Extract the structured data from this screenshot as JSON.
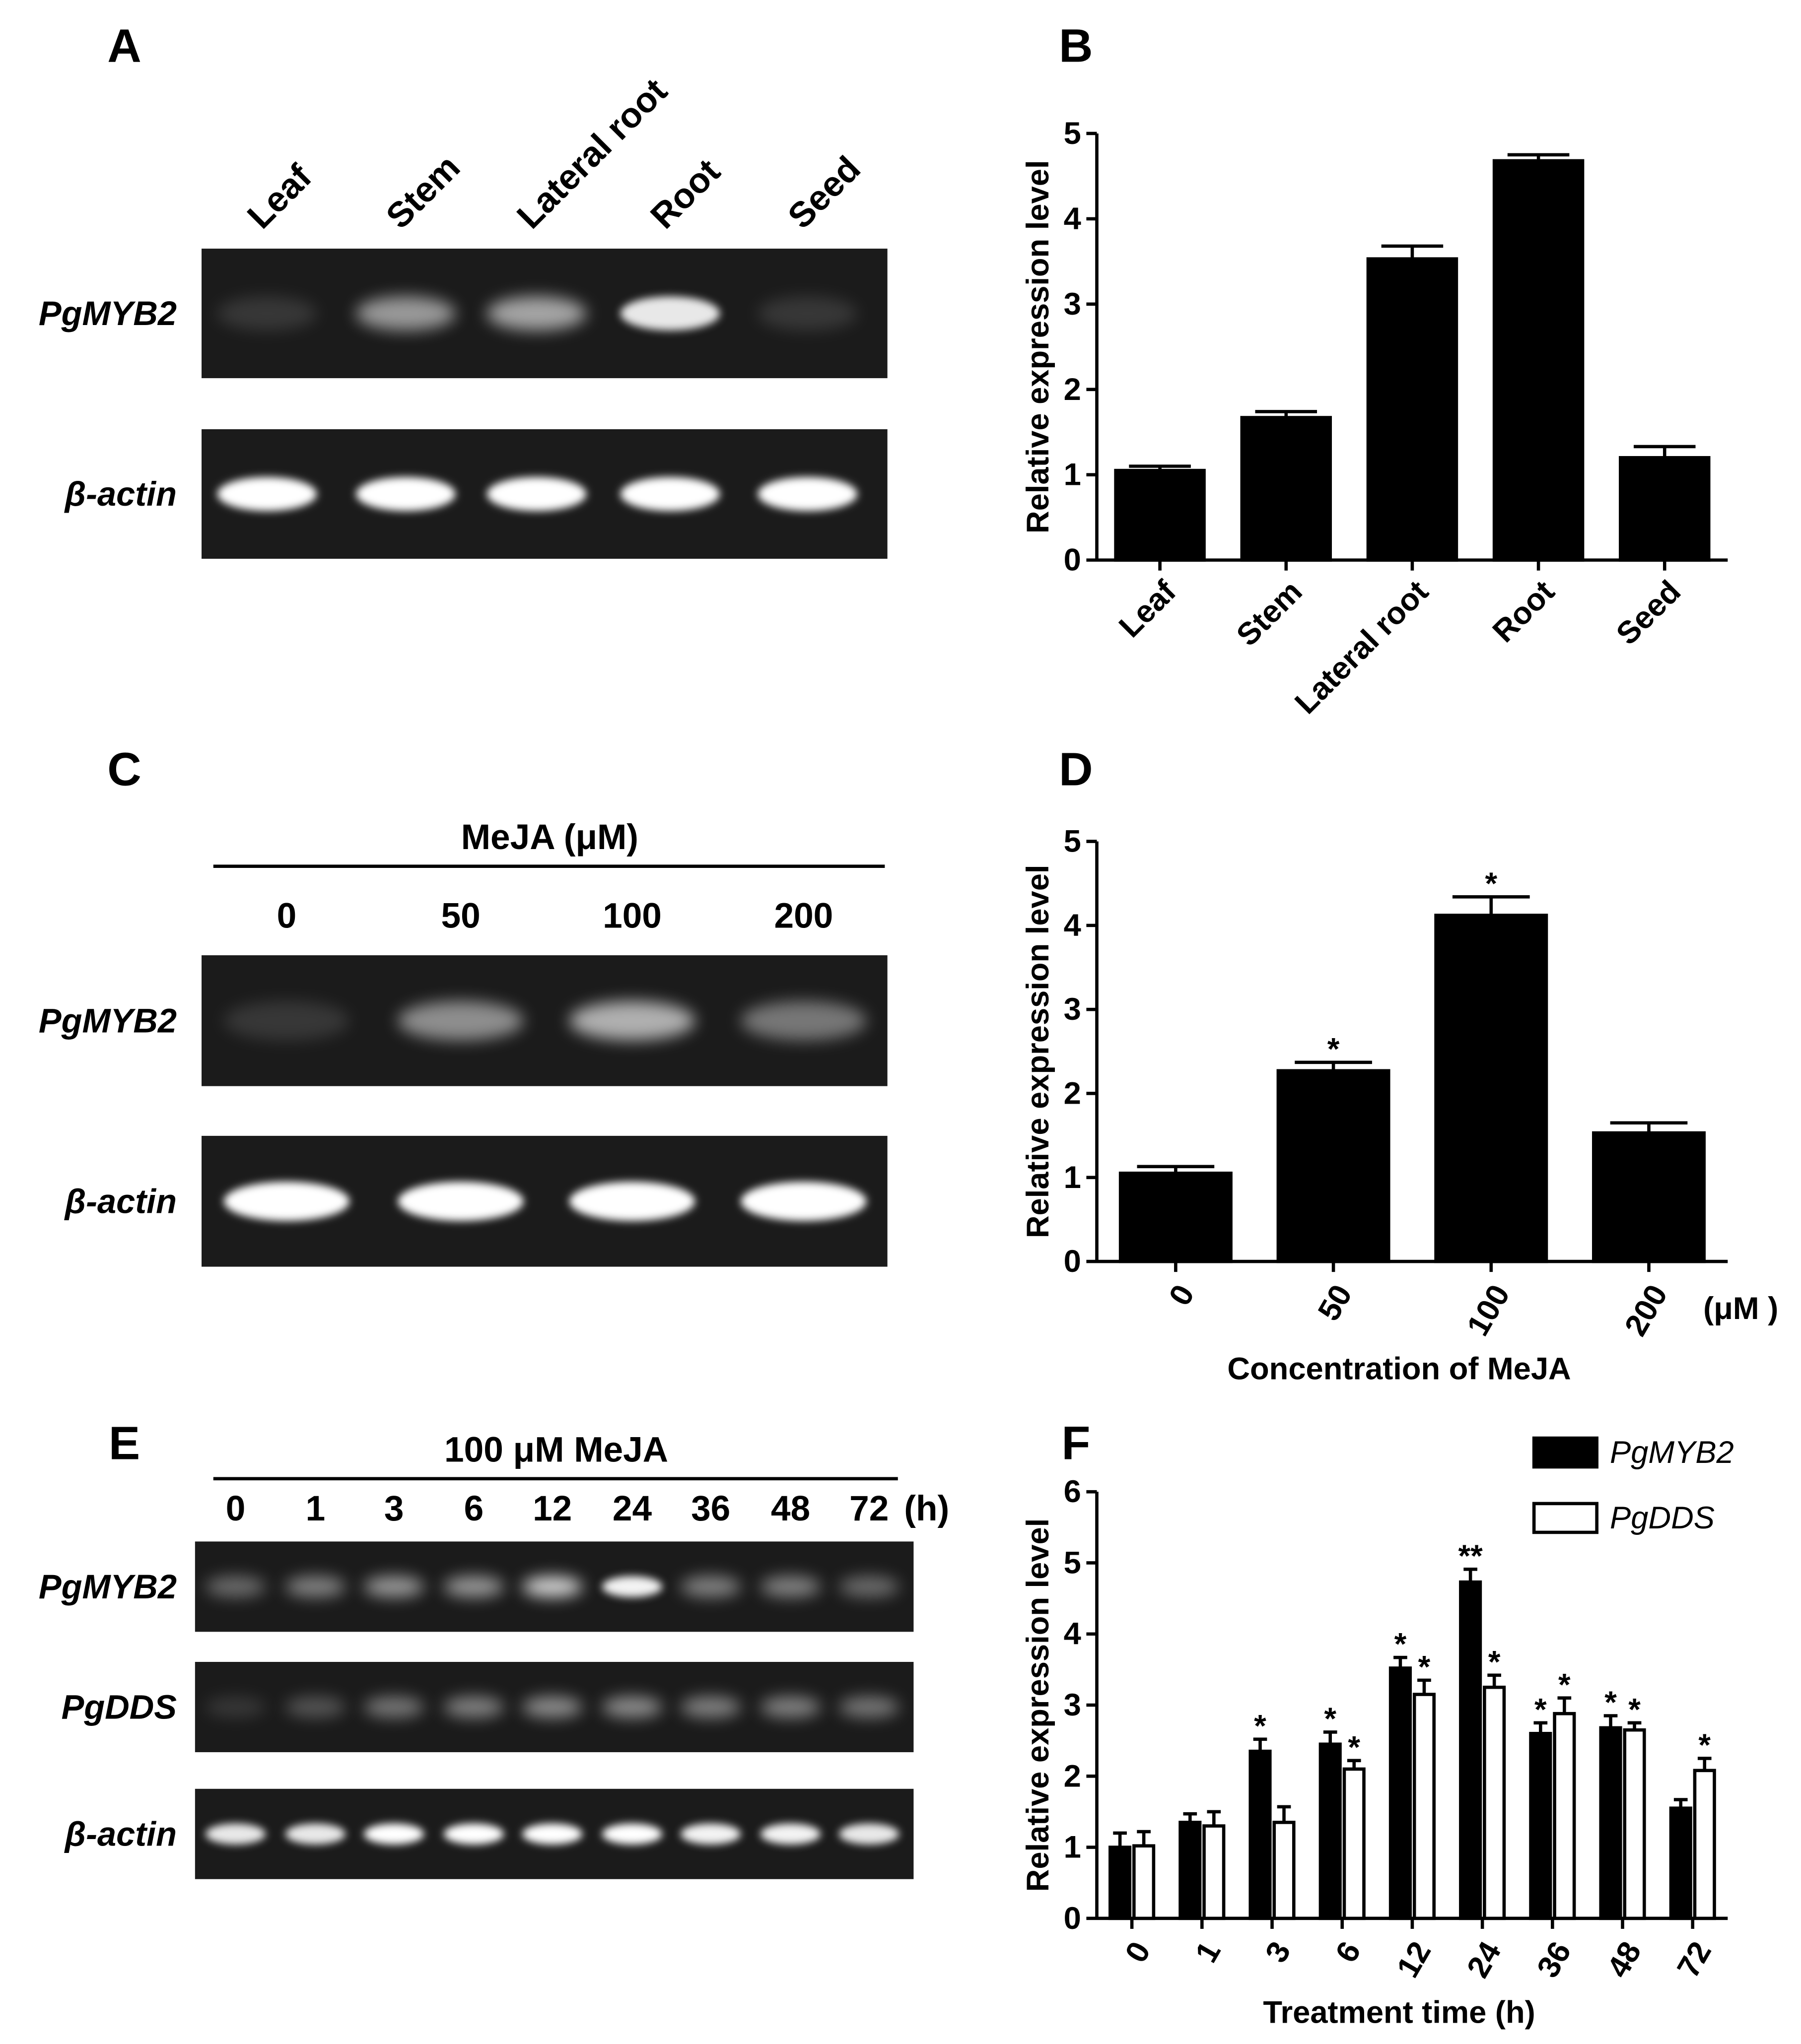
{
  "panel_labels": [
    "A",
    "B",
    "C",
    "D",
    "E",
    "F"
  ],
  "gels": [
    {
      "lanes": [
        "Leaf",
        "Stem",
        "Lateral root",
        "Root",
        "Seed"
      ],
      "rows": [
        "PgMYB2",
        "β-actin"
      ]
    },
    {
      "header": "MeJA (μM)",
      "lanes": [
        "0",
        "50",
        "100",
        "200"
      ],
      "rows": [
        "PgMYB2",
        "β-actin"
      ]
    },
    {
      "header": "100 μM  MeJA",
      "lanes": [
        "0",
        "1",
        "3",
        "6",
        "12",
        "24",
        "36",
        "48",
        "72"
      ],
      "unit": "(h)",
      "rows": [
        "PgMYB2",
        "PgDDS",
        "β-actin"
      ]
    }
  ],
  "chart_data": [
    {
      "type": "bar",
      "y_label": "Relative expression level",
      "categories": [
        "Leaf",
        "Stem",
        "Lateral root",
        "Root",
        "Seed"
      ],
      "values": [
        1.05,
        1.67,
        3.53,
        4.68,
        1.2
      ],
      "errors": [
        0.05,
        0.07,
        0.15,
        0.07,
        0.13
      ],
      "color": "#000000",
      "ylim": [
        0,
        5
      ],
      "yticks": [
        0,
        1,
        2,
        3,
        4,
        5
      ]
    },
    {
      "type": "bar",
      "y_label": "Relative expression level",
      "x_label": "Concentration of MeJA",
      "x_unit": "(μM )",
      "categories": [
        "0",
        "50",
        "100",
        "200"
      ],
      "values": [
        1.05,
        2.27,
        4.12,
        1.53
      ],
      "errors": [
        0.08,
        0.1,
        0.22,
        0.12
      ],
      "markers": [
        null,
        "*",
        "*",
        null
      ],
      "color": "#000000",
      "ylim": [
        0,
        5
      ],
      "yticks": [
        0,
        1,
        2,
        3,
        4,
        5
      ]
    },
    {
      "type": "grouped-bar",
      "y_label": "Relative expression level",
      "x_label": "Treatment time (h)",
      "categories": [
        "0",
        "1",
        "3",
        "6",
        "12",
        "24",
        "36",
        "48",
        "72"
      ],
      "series": [
        {
          "name": "PgMYB2",
          "color": "#000000",
          "values": [
            1.0,
            1.35,
            2.35,
            2.45,
            3.52,
            4.73,
            2.6,
            2.68,
            1.55
          ],
          "errors": [
            0.2,
            0.12,
            0.17,
            0.17,
            0.15,
            0.18,
            0.15,
            0.17,
            0.12
          ],
          "markers": [
            null,
            null,
            "*",
            "*",
            "*",
            "**",
            "*",
            "*",
            null
          ]
        },
        {
          "name": "PgDDS",
          "color": "#ffffff",
          "values": [
            1.02,
            1.3,
            1.35,
            2.1,
            3.15,
            3.25,
            2.88,
            2.65,
            2.08
          ],
          "errors": [
            0.2,
            0.2,
            0.22,
            0.12,
            0.2,
            0.17,
            0.22,
            0.1,
            0.17
          ],
          "markers": [
            null,
            null,
            null,
            "*",
            "*",
            "*",
            "*",
            "*",
            "*"
          ]
        }
      ],
      "legend": "upper right",
      "ylim": [
        0,
        6
      ],
      "yticks": [
        0,
        1,
        2,
        3,
        4,
        5,
        6
      ]
    }
  ]
}
